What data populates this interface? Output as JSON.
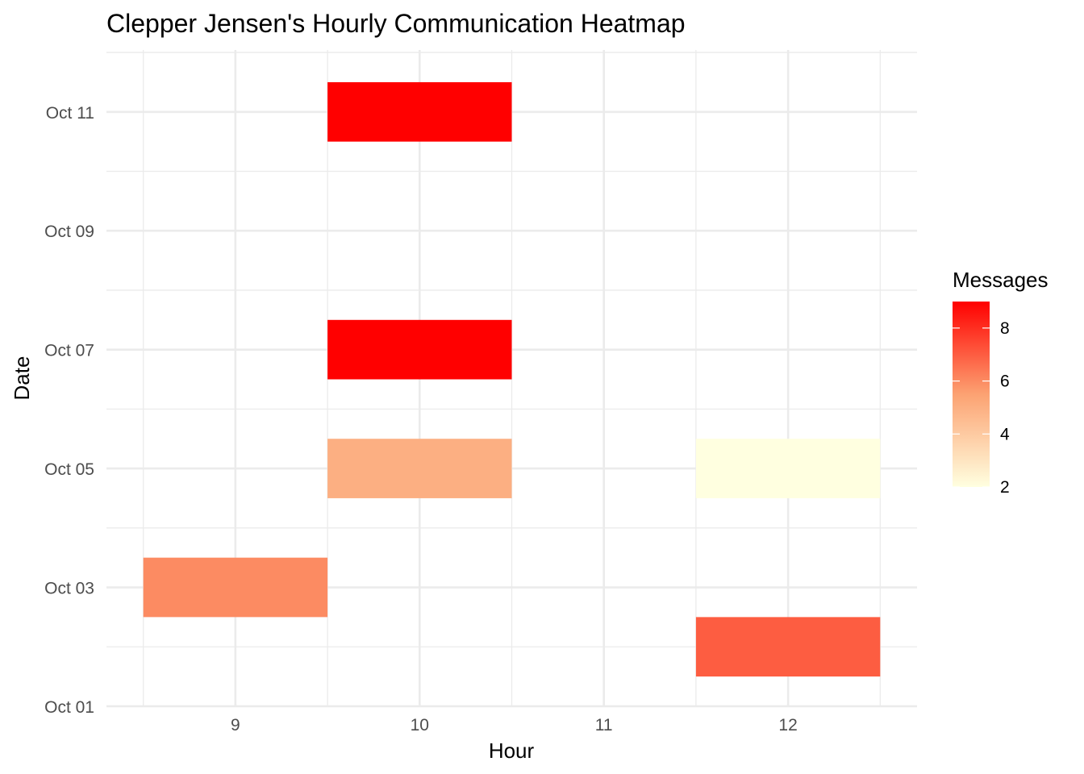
{
  "chart_data": {
    "type": "heatmap",
    "title": "Clepper Jensen's Hourly Communication Heatmap",
    "xlabel": "Hour",
    "ylabel": "Date",
    "x_ticks": [
      9,
      10,
      11,
      12
    ],
    "x_tick_labels": [
      "9",
      "10",
      "11",
      "12"
    ],
    "xlim": [
      8.3,
      12.7
    ],
    "y_ticks": [
      "2023-10-01",
      "2023-10-03",
      "2023-10-05",
      "2023-10-07",
      "2023-10-09",
      "2023-10-11"
    ],
    "y_tick_labels": [
      "Oct 01",
      "Oct 03",
      "Oct 05",
      "Oct 07",
      "Oct 09",
      "Oct 11"
    ],
    "ylim": [
      "2023-09-30T23:59",
      "2023-10-12T01:00"
    ],
    "grid": true,
    "legend": {
      "title": "Messages",
      "position": "right",
      "range": [
        2,
        9
      ],
      "ticks": [
        2,
        4,
        6,
        8
      ],
      "low_color": "#FFFFE0",
      "high_color": "#FF0000"
    },
    "cells": [
      {
        "hour": 9,
        "date": "2023-10-03",
        "messages": 6
      },
      {
        "hour": 10,
        "date": "2023-10-05",
        "messages": 5
      },
      {
        "hour": 12,
        "date": "2023-10-05",
        "messages": 2
      },
      {
        "hour": 10,
        "date": "2023-10-07",
        "messages": 9
      },
      {
        "hour": 10,
        "date": "2023-10-11",
        "messages": 9
      },
      {
        "hour": 12,
        "date": "2023-10-02",
        "messages": 7
      }
    ]
  }
}
